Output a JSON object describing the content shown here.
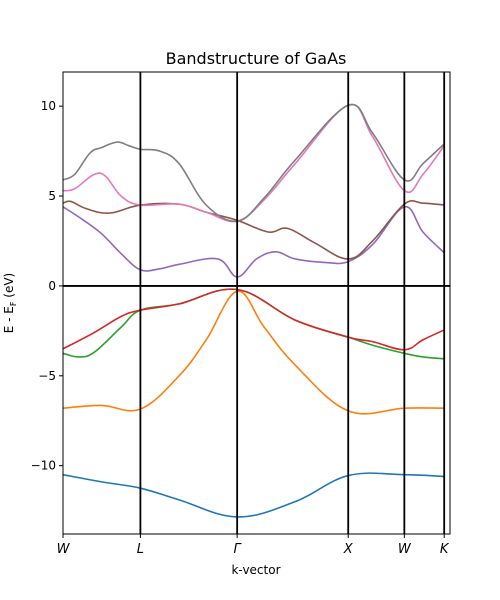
{
  "chart_data": {
    "type": "line",
    "title": "Bandstructure of GaAs",
    "xlabel": "k-vector",
    "ylabel": "E - E",
    "ylabel_sub": "F",
    "ylabel_unit": " (eV)",
    "ylim": [
      -13.8,
      11.9
    ],
    "xlim": [
      0,
      1
    ],
    "yticks": [
      10,
      5,
      0,
      -5,
      -10
    ],
    "ytick_labels": [
      "10",
      "5",
      "0",
      "−5",
      "−10"
    ],
    "kpoints": [
      {
        "label": "W",
        "x": 0
      },
      {
        "label": "L",
        "x": 0.2
      },
      {
        "label": "Γ",
        "x": 0.45
      },
      {
        "label": "X",
        "x": 0.737
      },
      {
        "label": "W",
        "x": 0.882
      },
      {
        "label": "K",
        "x": 0.985
      }
    ],
    "fermi_level": 0,
    "grid": false,
    "legend": "none",
    "series": [
      {
        "color": "#1f77b4",
        "points": [
          [
            0,
            -10.5
          ],
          [
            0.1,
            -10.9
          ],
          [
            0.2,
            -11.25
          ],
          [
            0.3,
            -11.9
          ],
          [
            0.45,
            -12.85
          ],
          [
            0.6,
            -12.0
          ],
          [
            0.737,
            -10.55
          ],
          [
            0.882,
            -10.5
          ],
          [
            0.985,
            -10.6
          ]
        ]
      },
      {
        "color": "#ff7f0e",
        "points": [
          [
            0,
            -6.8
          ],
          [
            0.1,
            -6.65
          ],
          [
            0.2,
            -6.85
          ],
          [
            0.3,
            -5.0
          ],
          [
            0.37,
            -3.0
          ],
          [
            0.45,
            -0.3
          ],
          [
            0.52,
            -2.3
          ],
          [
            0.6,
            -4.4
          ],
          [
            0.737,
            -6.95
          ],
          [
            0.882,
            -6.8
          ],
          [
            0.985,
            -6.8
          ]
        ]
      },
      {
        "color": "#2ca02c",
        "points": [
          [
            0,
            -3.75
          ],
          [
            0.04,
            -3.95
          ],
          [
            0.08,
            -3.7
          ],
          [
            0.15,
            -2.3
          ],
          [
            0.2,
            -1.35
          ],
          [
            0.3,
            -1.0
          ],
          [
            0.45,
            -0.2
          ],
          [
            0.6,
            -1.9
          ],
          [
            0.737,
            -2.85
          ],
          [
            0.8,
            -3.3
          ],
          [
            0.882,
            -3.75
          ],
          [
            0.93,
            -3.95
          ],
          [
            0.985,
            -4.05
          ]
        ]
      },
      {
        "color": "#d62728",
        "points": [
          [
            0,
            -3.5
          ],
          [
            0.08,
            -2.6
          ],
          [
            0.15,
            -1.7
          ],
          [
            0.2,
            -1.35
          ],
          [
            0.3,
            -1.0
          ],
          [
            0.45,
            -0.2
          ],
          [
            0.6,
            -1.9
          ],
          [
            0.737,
            -2.85
          ],
          [
            0.8,
            -3.1
          ],
          [
            0.882,
            -3.55
          ],
          [
            0.93,
            -3.0
          ],
          [
            0.985,
            -2.45
          ]
        ]
      },
      {
        "color": "#9467bd",
        "points": [
          [
            0,
            4.4
          ],
          [
            0.05,
            3.7
          ],
          [
            0.1,
            2.9
          ],
          [
            0.15,
            1.8
          ],
          [
            0.2,
            0.9
          ],
          [
            0.25,
            0.95
          ],
          [
            0.3,
            1.2
          ],
          [
            0.4,
            1.5
          ],
          [
            0.45,
            0.5
          ],
          [
            0.5,
            1.5
          ],
          [
            0.55,
            1.9
          ],
          [
            0.6,
            1.5
          ],
          [
            0.68,
            1.3
          ],
          [
            0.737,
            1.35
          ],
          [
            0.8,
            2.3
          ],
          [
            0.882,
            4.4
          ],
          [
            0.93,
            3.0
          ],
          [
            0.985,
            1.85
          ]
        ]
      },
      {
        "color": "#8c564b",
        "points": [
          [
            0,
            4.6
          ],
          [
            0.02,
            4.7
          ],
          [
            0.06,
            4.3
          ],
          [
            0.12,
            4.05
          ],
          [
            0.2,
            4.5
          ],
          [
            0.3,
            4.55
          ],
          [
            0.37,
            4.1
          ],
          [
            0.45,
            3.65
          ],
          [
            0.53,
            3.0
          ],
          [
            0.58,
            3.2
          ],
          [
            0.65,
            2.4
          ],
          [
            0.737,
            1.5
          ],
          [
            0.8,
            2.5
          ],
          [
            0.882,
            4.55
          ],
          [
            0.93,
            4.6
          ],
          [
            0.985,
            4.5
          ]
        ]
      },
      {
        "color": "#e377c2",
        "points": [
          [
            0,
            5.3
          ],
          [
            0.03,
            5.4
          ],
          [
            0.08,
            6.2
          ],
          [
            0.11,
            6.1
          ],
          [
            0.15,
            5.0
          ],
          [
            0.2,
            4.5
          ],
          [
            0.3,
            4.55
          ],
          [
            0.37,
            4.1
          ],
          [
            0.45,
            3.6
          ],
          [
            0.52,
            4.8
          ],
          [
            0.6,
            6.8
          ],
          [
            0.737,
            10.05
          ],
          [
            0.8,
            8.3
          ],
          [
            0.882,
            5.3
          ],
          [
            0.93,
            6.2
          ],
          [
            0.985,
            7.8
          ]
        ]
      },
      {
        "color": "#7f7f7f",
        "points": [
          [
            0,
            5.9
          ],
          [
            0.03,
            6.2
          ],
          [
            0.07,
            7.4
          ],
          [
            0.1,
            7.7
          ],
          [
            0.14,
            8.0
          ],
          [
            0.17,
            7.8
          ],
          [
            0.2,
            7.6
          ],
          [
            0.25,
            7.5
          ],
          [
            0.3,
            6.8
          ],
          [
            0.37,
            4.5
          ],
          [
            0.45,
            3.6
          ],
          [
            0.52,
            4.9
          ],
          [
            0.6,
            7.0
          ],
          [
            0.737,
            10.05
          ],
          [
            0.8,
            8.5
          ],
          [
            0.882,
            5.9
          ],
          [
            0.93,
            6.8
          ],
          [
            0.985,
            7.9
          ]
        ]
      }
    ]
  }
}
